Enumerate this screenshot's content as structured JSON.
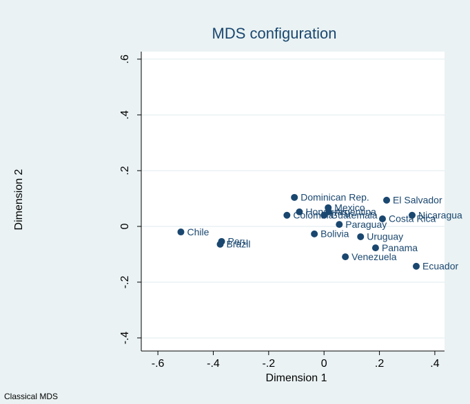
{
  "chart_data": {
    "type": "scatter",
    "title": "MDS configuration",
    "xlabel": "Dimension 1",
    "ylabel": "Dimension 2",
    "note": "Classical MDS",
    "color": "#1a476f",
    "grid": true,
    "labels": [
      "Chile",
      "Peru",
      "Brazil",
      "Dominican Rep.",
      "Honduras",
      "Colombia",
      "Mexico",
      "Argentina",
      "Guatemala",
      "Paraguay",
      "Bolivia",
      "El Salvador",
      "Costa Rica",
      "Nicaragua",
      "Uruguay",
      "Panama",
      "Venezuela",
      "Ecuador"
    ],
    "x": [
      -0.517,
      -0.37,
      -0.375,
      -0.107,
      -0.089,
      -0.134,
      0.015,
      0.017,
      0.0,
      0.055,
      -0.035,
      0.226,
      0.211,
      0.318,
      0.132,
      0.186,
      0.077,
      0.333
    ],
    "y": [
      -0.02,
      -0.054,
      -0.064,
      0.104,
      0.052,
      0.04,
      0.067,
      0.052,
      0.04,
      0.007,
      -0.027,
      0.094,
      0.027,
      0.04,
      -0.037,
      -0.077,
      -0.109,
      -0.143
    ],
    "xlim": [
      -0.66,
      0.435
    ],
    "ylim": [
      -0.447,
      0.627
    ],
    "xticks": [
      {
        "value": -0.6,
        "label": "-.6"
      },
      {
        "value": -0.4,
        "label": "-.4"
      },
      {
        "value": -0.2,
        "label": "-.2"
      },
      0,
      {
        "value": 0.2,
        "label": ".2"
      },
      {
        "value": 0.4,
        "label": ".4"
      }
    ],
    "yticks": [
      {
        "value": -0.4,
        "label": "-.4"
      },
      {
        "value": -0.2,
        "label": "-.2"
      },
      0,
      {
        "value": 0.2,
        "label": ".2"
      },
      {
        "value": 0.4,
        "label": ".4"
      },
      {
        "value": 0.6,
        "label": ".6"
      }
    ]
  }
}
